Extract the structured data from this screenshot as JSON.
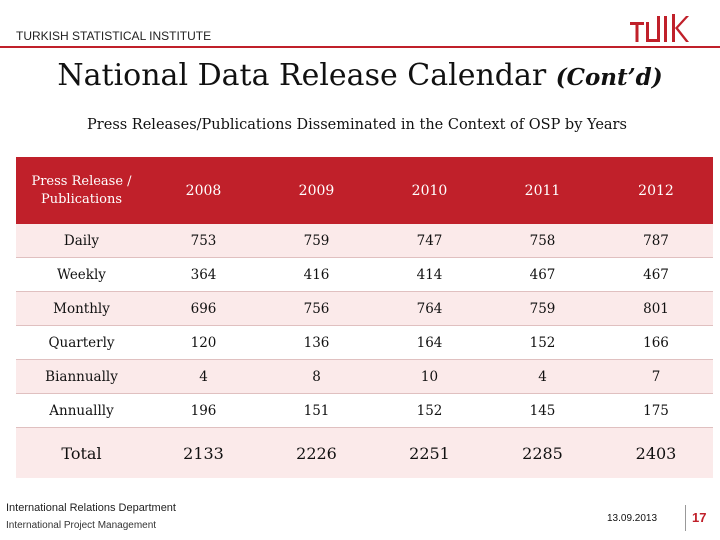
{
  "header": {
    "org": "TURKISH STATISTICAL INSTITUTE",
    "logo_label": "TÜİK",
    "accent_color": "#c0202a"
  },
  "title": {
    "main": "National Data Release Calendar",
    "suffix": "(Cont’d)"
  },
  "subtitle": "Press Releases/Publications Disseminated in the Context of OSP by Years",
  "table": {
    "columns": [
      "Press Release / Publications",
      "2008",
      "2009",
      "2010",
      "2011",
      "2012"
    ],
    "rows": [
      {
        "label": "Daily",
        "values": [
          "753",
          "759",
          "747",
          "758",
          "787"
        ]
      },
      {
        "label": "Weekly",
        "values": [
          "364",
          "416",
          "414",
          "467",
          "467"
        ]
      },
      {
        "label": "Monthly",
        "values": [
          "696",
          "756",
          "764",
          "759",
          "801"
        ]
      },
      {
        "label": "Quarterly",
        "values": [
          "120",
          "136",
          "164",
          "152",
          "166"
        ]
      },
      {
        "label": "Biannually",
        "values": [
          "4",
          "8",
          "10",
          "4",
          "7"
        ]
      },
      {
        "label": "Annuallly",
        "values": [
          "196",
          "151",
          "152",
          "145",
          "175"
        ]
      }
    ],
    "total": {
      "label": "Total",
      "values": [
        "2133",
        "2226",
        "2251",
        "2285",
        "2403"
      ]
    }
  },
  "footer": {
    "department": "International Relations Department",
    "unit": "International Project Management",
    "date": "13.09.2013",
    "page": "17"
  }
}
